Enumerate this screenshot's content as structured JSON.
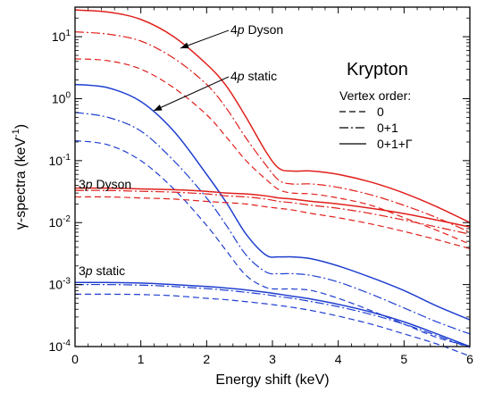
{
  "chart_data": {
    "type": "line",
    "title": "Krypton",
    "xlabel": "Energy shift (keV)",
    "ylabel": {
      "base": "γ-spectra (keV",
      "exp": "-1",
      "close": ")"
    },
    "xlim": [
      0,
      6
    ],
    "ylim": [
      0.0001,
      30
    ],
    "yscale": "log",
    "xticks": [
      "0",
      "1",
      "2",
      "3",
      "4",
      "5",
      "6"
    ],
    "yticks": [
      {
        "base": "10",
        "exp": "1",
        "value": 10
      },
      {
        "base": "10",
        "exp": "0",
        "value": 1
      },
      {
        "base": "10",
        "exp": "-1",
        "value": 0.1
      },
      {
        "base": "10",
        "exp": "-2",
        "value": 0.01
      },
      {
        "base": "10",
        "exp": "-3",
        "value": 0.001
      },
      {
        "base": "10",
        "exp": "-4",
        "value": 0.0001
      }
    ],
    "colors": {
      "dyson_4p": "#e0201c",
      "static_4p": "#1f3fd0",
      "dyson_3p": "#e0201c",
      "static_3p": "#1f3fd0"
    },
    "legend": {
      "title": "Vertex order:",
      "entries": [
        {
          "label": "0",
          "dash": "dashed"
        },
        {
          "label": "0+1",
          "dash": "dashdot"
        },
        {
          "label": "0+1+Γ",
          "dash": "solid"
        }
      ],
      "position": "right"
    },
    "annotations": [
      {
        "prefix": "4",
        "italic": "p",
        "suffix": " Dyson"
      },
      {
        "prefix": "4",
        "italic": "p",
        "suffix": " static"
      },
      {
        "prefix": "3",
        "italic": "p",
        "suffix": " Dyson"
      },
      {
        "prefix": "3",
        "italic": "p",
        "suffix": " static"
      }
    ],
    "x": [
      0,
      0.5,
      1,
      1.5,
      2,
      2.3,
      2.6,
      2.9,
      3.1,
      3.3,
      3.6,
      4,
      4.5,
      5,
      5.5,
      6
    ],
    "series": [
      {
        "group": "4p Dyson",
        "order": "0+1+Γ",
        "color": "dyson_4p",
        "dash": "solid",
        "values": [
          27,
          25,
          19,
          10,
          3.6,
          1.6,
          0.5,
          0.14,
          0.075,
          0.068,
          0.068,
          0.06,
          0.045,
          0.03,
          0.018,
          0.01
        ]
      },
      {
        "group": "4p Dyson",
        "order": "0+1",
        "color": "dyson_4p",
        "dash": "dashdot",
        "values": [
          12,
          11,
          8.5,
          4.5,
          1.7,
          0.7,
          0.23,
          0.085,
          0.048,
          0.042,
          0.042,
          0.037,
          0.028,
          0.019,
          0.012,
          0.007
        ]
      },
      {
        "group": "4p Dyson",
        "order": "0",
        "color": "dyson_4p",
        "dash": "dashed",
        "values": [
          4.4,
          4.1,
          3.0,
          1.5,
          0.55,
          0.24,
          0.1,
          0.05,
          0.034,
          0.03,
          0.029,
          0.025,
          0.019,
          0.012,
          0.0075,
          0.0045
        ]
      },
      {
        "group": "4p static",
        "order": "0+1+Γ",
        "color": "static_4p",
        "dash": "solid",
        "values": [
          1.7,
          1.5,
          0.9,
          0.3,
          0.06,
          0.021,
          0.0065,
          0.003,
          0.0028,
          0.0028,
          0.0026,
          0.002,
          0.0013,
          0.0008,
          0.00045,
          0.00027
        ]
      },
      {
        "group": "4p static",
        "order": "0+1",
        "color": "static_4p",
        "dash": "dashdot",
        "values": [
          0.6,
          0.5,
          0.3,
          0.1,
          0.025,
          0.009,
          0.003,
          0.0016,
          0.0015,
          0.0015,
          0.0014,
          0.0011,
          0.0007,
          0.00042,
          0.00025,
          0.00016
        ]
      },
      {
        "group": "4p static",
        "order": "0",
        "color": "static_4p",
        "dash": "dashed",
        "values": [
          0.21,
          0.18,
          0.1,
          0.035,
          0.009,
          0.0035,
          0.0014,
          0.0009,
          0.00085,
          0.00085,
          0.0008,
          0.0006,
          0.00038,
          0.00023,
          0.00014,
          0.0001
        ]
      },
      {
        "group": "3p Dyson",
        "order": "0+1+Γ",
        "color": "dyson_3p",
        "dash": "solid",
        "values": [
          0.036,
          0.036,
          0.035,
          0.034,
          0.032,
          0.03,
          0.029,
          0.027,
          0.025,
          0.024,
          0.022,
          0.02,
          0.017,
          0.014,
          0.011,
          0.0085
        ]
      },
      {
        "group": "3p Dyson",
        "order": "0+1",
        "color": "dyson_3p",
        "dash": "dashdot",
        "values": [
          0.033,
          0.033,
          0.032,
          0.031,
          0.029,
          0.027,
          0.026,
          0.024,
          0.022,
          0.021,
          0.019,
          0.017,
          0.014,
          0.011,
          0.0085,
          0.0065
        ]
      },
      {
        "group": "3p Dyson",
        "order": "0",
        "color": "dyson_3p",
        "dash": "dashed",
        "values": [
          0.026,
          0.026,
          0.025,
          0.024,
          0.022,
          0.021,
          0.02,
          0.018,
          0.017,
          0.016,
          0.014,
          0.012,
          0.0095,
          0.0072,
          0.0053,
          0.0038
        ]
      },
      {
        "group": "3p static",
        "order": "0+1+Γ",
        "color": "static_3p",
        "dash": "solid",
        "values": [
          0.00108,
          0.00108,
          0.00106,
          0.001,
          0.00093,
          0.00088,
          0.00082,
          0.00075,
          0.0007,
          0.00065,
          0.00058,
          0.00048,
          0.00036,
          0.00025,
          0.00016,
          0.0001
        ]
      },
      {
        "group": "3p static",
        "order": "0+1",
        "color": "static_3p",
        "dash": "dashdot",
        "values": [
          0.001,
          0.001,
          0.00098,
          0.00093,
          0.00086,
          0.00081,
          0.00075,
          0.00069,
          0.00064,
          0.0006,
          0.00053,
          0.00044,
          0.00033,
          0.00023,
          0.00015,
          9.5e-05
        ]
      },
      {
        "group": "3p static",
        "order": "0",
        "color": "static_3p",
        "dash": "dashed",
        "values": [
          0.0007,
          0.0007,
          0.00069,
          0.00066,
          0.0006,
          0.00057,
          0.00053,
          0.00049,
          0.00046,
          0.00043,
          0.00038,
          0.00031,
          0.00023,
          0.00016,
          0.00011,
          7e-05
        ]
      }
    ]
  }
}
